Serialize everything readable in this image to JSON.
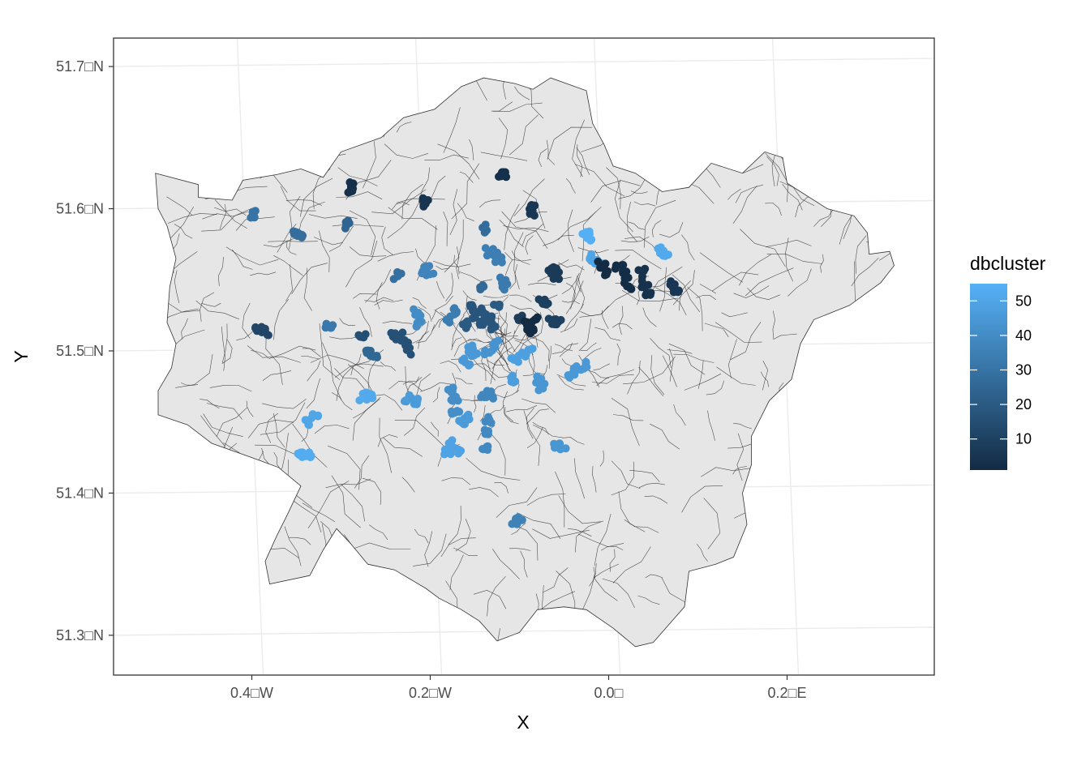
{
  "chart_data": {
    "type": "map",
    "xlabel": "X",
    "ylabel": "Y",
    "x_ticks": [
      {
        "value": -0.4,
        "label": "0.4□W"
      },
      {
        "value": -0.2,
        "label": "0.2□W"
      },
      {
        "value": 0.0,
        "label": "0.0□"
      },
      {
        "value": 0.2,
        "label": "0.2□E"
      }
    ],
    "y_ticks": [
      {
        "value": 51.7,
        "label": "51.7□N"
      },
      {
        "value": 51.6,
        "label": "51.6□N"
      },
      {
        "value": 51.5,
        "label": "51.5□N"
      },
      {
        "value": 51.4,
        "label": "51.4□N"
      },
      {
        "value": 51.3,
        "label": "51.3□N"
      }
    ],
    "xlim": [
      -0.555,
      0.365
    ],
    "ylim": [
      51.272,
      51.72
    ],
    "grid": true,
    "legend": {
      "title": "dbcluster",
      "placement": "right",
      "type": "colorbar",
      "range": [
        1,
        55
      ],
      "ticks": [
        10,
        20,
        30,
        40,
        50
      ],
      "color_low": "#132B43",
      "color_high": "#56B1F7"
    },
    "region_fill": "#e6e6e6",
    "region_stroke": "#333333",
    "outline": [
      [
        -0.508,
        51.625
      ],
      [
        -0.46,
        51.617
      ],
      [
        -0.46,
        51.608
      ],
      [
        -0.422,
        51.606
      ],
      [
        -0.41,
        51.62
      ],
      [
        -0.372,
        51.624
      ],
      [
        -0.345,
        51.628
      ],
      [
        -0.32,
        51.622
      ],
      [
        -0.3,
        51.64
      ],
      [
        -0.255,
        51.65
      ],
      [
        -0.23,
        51.664
      ],
      [
        -0.195,
        51.67
      ],
      [
        -0.165,
        51.686
      ],
      [
        -0.14,
        51.692
      ],
      [
        -0.105,
        51.688
      ],
      [
        -0.085,
        51.684
      ],
      [
        -0.065,
        51.692
      ],
      [
        -0.025,
        51.683
      ],
      [
        -0.018,
        51.66
      ],
      [
        -0.005,
        51.645
      ],
      [
        0.005,
        51.63
      ],
      [
        0.03,
        51.625
      ],
      [
        0.06,
        51.612
      ],
      [
        0.09,
        51.615
      ],
      [
        0.115,
        51.632
      ],
      [
        0.15,
        51.625
      ],
      [
        0.175,
        51.64
      ],
      [
        0.195,
        51.636
      ],
      [
        0.2,
        51.618
      ],
      [
        0.245,
        51.6
      ],
      [
        0.275,
        51.595
      ],
      [
        0.29,
        51.583
      ],
      [
        0.292,
        51.568
      ],
      [
        0.315,
        51.57
      ],
      [
        0.32,
        51.56
      ],
      [
        0.305,
        51.548
      ],
      [
        0.27,
        51.532
      ],
      [
        0.23,
        51.522
      ],
      [
        0.215,
        51.505
      ],
      [
        0.205,
        51.48
      ],
      [
        0.18,
        51.465
      ],
      [
        0.16,
        51.44
      ],
      [
        0.16,
        51.42
      ],
      [
        0.15,
        51.4
      ],
      [
        0.155,
        51.378
      ],
      [
        0.14,
        51.355
      ],
      [
        0.12,
        51.35
      ],
      [
        0.09,
        51.345
      ],
      [
        0.085,
        51.32
      ],
      [
        0.05,
        51.295
      ],
      [
        0.03,
        51.292
      ],
      [
        0.005,
        51.305
      ],
      [
        -0.025,
        51.318
      ],
      [
        -0.05,
        51.32
      ],
      [
        -0.08,
        51.318
      ],
      [
        -0.1,
        51.302
      ],
      [
        -0.125,
        51.296
      ],
      [
        -0.145,
        51.31
      ],
      [
        -0.165,
        51.318
      ],
      [
        -0.19,
        51.326
      ],
      [
        -0.205,
        51.333
      ],
      [
        -0.24,
        51.346
      ],
      [
        -0.27,
        51.35
      ],
      [
        -0.29,
        51.365
      ],
      [
        -0.305,
        51.375
      ],
      [
        -0.32,
        51.36
      ],
      [
        -0.335,
        51.342
      ],
      [
        -0.38,
        51.336
      ],
      [
        -0.385,
        51.352
      ],
      [
        -0.372,
        51.37
      ],
      [
        -0.36,
        51.385
      ],
      [
        -0.345,
        51.405
      ],
      [
        -0.37,
        51.418
      ],
      [
        -0.4,
        51.425
      ],
      [
        -0.445,
        51.435
      ],
      [
        -0.472,
        51.448
      ],
      [
        -0.505,
        51.455
      ],
      [
        -0.505,
        51.472
      ],
      [
        -0.49,
        51.488
      ],
      [
        -0.485,
        51.505
      ],
      [
        -0.495,
        51.52
      ],
      [
        -0.492,
        51.545
      ],
      [
        -0.485,
        51.565
      ],
      [
        -0.495,
        51.588
      ],
      [
        -0.505,
        51.6
      ],
      [
        -0.508,
        51.625
      ]
    ],
    "points": [
      {
        "x": -0.29,
        "y": 51.616,
        "c": 3
      },
      {
        "x": -0.288,
        "y": 51.613,
        "c": 3
      },
      {
        "x": -0.117,
        "y": 51.626,
        "c": 3
      },
      {
        "x": -0.119,
        "y": 51.623,
        "c": 3
      },
      {
        "x": -0.205,
        "y": 51.608,
        "c": 5
      },
      {
        "x": -0.208,
        "y": 51.603,
        "c": 5
      },
      {
        "x": -0.084,
        "y": 51.6,
        "c": 6
      },
      {
        "x": -0.087,
        "y": 51.598,
        "c": 6
      },
      {
        "x": -0.397,
        "y": 51.596,
        "c": 30
      },
      {
        "x": -0.35,
        "y": 51.585,
        "c": 28
      },
      {
        "x": -0.347,
        "y": 51.582,
        "c": 28
      },
      {
        "x": -0.292,
        "y": 51.589,
        "c": 24
      },
      {
        "x": -0.139,
        "y": 51.586,
        "c": 27
      },
      {
        "x": -0.128,
        "y": 51.567,
        "c": 35
      },
      {
        "x": -0.123,
        "y": 51.564,
        "c": 35
      },
      {
        "x": -0.134,
        "y": 51.57,
        "c": 35
      },
      {
        "x": -0.205,
        "y": 51.557,
        "c": 37
      },
      {
        "x": -0.2,
        "y": 51.555,
        "c": 37
      },
      {
        "x": -0.237,
        "y": 51.553,
        "c": 29
      },
      {
        "x": -0.063,
        "y": 51.556,
        "c": 7
      },
      {
        "x": -0.06,
        "y": 51.553,
        "c": 7
      },
      {
        "x": -0.076,
        "y": 51.535,
        "c": 9
      },
      {
        "x": -0.069,
        "y": 51.534,
        "c": 9
      },
      {
        "x": -0.025,
        "y": 51.582,
        "c": 54
      },
      {
        "x": -0.022,
        "y": 51.58,
        "c": 54
      },
      {
        "x": -0.019,
        "y": 51.566,
        "c": 50
      },
      {
        "x": -0.012,
        "y": 51.563,
        "c": 50
      },
      {
        "x": -0.008,
        "y": 51.56,
        "c": 1
      },
      {
        "x": -0.004,
        "y": 51.556,
        "c": 1
      },
      {
        "x": 0.012,
        "y": 51.558,
        "c": 2
      },
      {
        "x": 0.018,
        "y": 51.553,
        "c": 2
      },
      {
        "x": 0.022,
        "y": 51.545,
        "c": 2
      },
      {
        "x": 0.038,
        "y": 51.555,
        "c": 4
      },
      {
        "x": 0.041,
        "y": 51.547,
        "c": 4
      },
      {
        "x": 0.043,
        "y": 51.54,
        "c": 4
      },
      {
        "x": 0.058,
        "y": 51.57,
        "c": 52
      },
      {
        "x": 0.063,
        "y": 51.568,
        "c": 52
      },
      {
        "x": 0.072,
        "y": 51.547,
        "c": 6
      },
      {
        "x": 0.077,
        "y": 51.544,
        "c": 6
      },
      {
        "x": -0.155,
        "y": 51.53,
        "c": 18
      },
      {
        "x": -0.15,
        "y": 51.525,
        "c": 18
      },
      {
        "x": -0.145,
        "y": 51.52,
        "c": 18
      },
      {
        "x": -0.14,
        "y": 51.528,
        "c": 18
      },
      {
        "x": -0.135,
        "y": 51.522,
        "c": 18
      },
      {
        "x": -0.13,
        "y": 51.517,
        "c": 18
      },
      {
        "x": -0.125,
        "y": 51.53,
        "c": 20
      },
      {
        "x": -0.16,
        "y": 51.518,
        "c": 20
      },
      {
        "x": -0.17,
        "y": 51.528,
        "c": 34
      },
      {
        "x": -0.178,
        "y": 51.522,
        "c": 34
      },
      {
        "x": -0.12,
        "y": 51.55,
        "c": 33
      },
      {
        "x": -0.115,
        "y": 51.545,
        "c": 33
      },
      {
        "x": -0.142,
        "y": 51.545,
        "c": 26
      },
      {
        "x": -0.1,
        "y": 51.522,
        "c": 8
      },
      {
        "x": -0.092,
        "y": 51.52,
        "c": 1
      },
      {
        "x": -0.088,
        "y": 51.515,
        "c": 1
      },
      {
        "x": -0.082,
        "y": 51.523,
        "c": 1
      },
      {
        "x": -0.063,
        "y": 51.52,
        "c": 10
      },
      {
        "x": -0.057,
        "y": 51.52,
        "c": 10
      },
      {
        "x": -0.215,
        "y": 51.527,
        "c": 40
      },
      {
        "x": -0.213,
        "y": 51.52,
        "c": 40
      },
      {
        "x": -0.245,
        "y": 51.511,
        "c": 16
      },
      {
        "x": -0.235,
        "y": 51.51,
        "c": 16
      },
      {
        "x": -0.228,
        "y": 51.505,
        "c": 16
      },
      {
        "x": -0.222,
        "y": 51.5,
        "c": 16
      },
      {
        "x": -0.392,
        "y": 51.515,
        "c": 12
      },
      {
        "x": -0.385,
        "y": 51.513,
        "c": 12
      },
      {
        "x": -0.313,
        "y": 51.517,
        "c": 32
      },
      {
        "x": -0.276,
        "y": 51.512,
        "c": 15
      },
      {
        "x": -0.27,
        "y": 51.498,
        "c": 25
      },
      {
        "x": -0.264,
        "y": 51.497,
        "c": 25
      },
      {
        "x": -0.155,
        "y": 51.502,
        "c": 45
      },
      {
        "x": -0.15,
        "y": 51.497,
        "c": 45
      },
      {
        "x": -0.16,
        "y": 51.492,
        "c": 45
      },
      {
        "x": -0.105,
        "y": 51.494,
        "c": 48
      },
      {
        "x": -0.097,
        "y": 51.497,
        "c": 48
      },
      {
        "x": -0.088,
        "y": 51.5,
        "c": 48
      },
      {
        "x": -0.107,
        "y": 51.48,
        "c": 47
      },
      {
        "x": -0.078,
        "y": 51.48,
        "c": 44
      },
      {
        "x": -0.075,
        "y": 51.475,
        "c": 44
      },
      {
        "x": -0.042,
        "y": 51.483,
        "c": 45
      },
      {
        "x": -0.035,
        "y": 51.487,
        "c": 45
      },
      {
        "x": -0.028,
        "y": 51.49,
        "c": 45
      },
      {
        "x": -0.275,
        "y": 51.468,
        "c": 52
      },
      {
        "x": -0.267,
        "y": 51.468,
        "c": 52
      },
      {
        "x": -0.225,
        "y": 51.467,
        "c": 46
      },
      {
        "x": -0.218,
        "y": 51.465,
        "c": 46
      },
      {
        "x": -0.176,
        "y": 51.473,
        "c": 41
      },
      {
        "x": -0.173,
        "y": 51.465,
        "c": 41
      },
      {
        "x": -0.172,
        "y": 51.458,
        "c": 41
      },
      {
        "x": -0.14,
        "y": 51.47,
        "c": 38
      },
      {
        "x": -0.133,
        "y": 51.469,
        "c": 38
      },
      {
        "x": -0.338,
        "y": 51.45,
        "c": 50
      },
      {
        "x": -0.33,
        "y": 51.453,
        "c": 50
      },
      {
        "x": -0.345,
        "y": 51.428,
        "c": 53
      },
      {
        "x": -0.337,
        "y": 51.428,
        "c": 53
      },
      {
        "x": -0.165,
        "y": 51.45,
        "c": 46
      },
      {
        "x": -0.158,
        "y": 51.453,
        "c": 46
      },
      {
        "x": -0.176,
        "y": 51.435,
        "c": 49
      },
      {
        "x": -0.17,
        "y": 51.43,
        "c": 49
      },
      {
        "x": -0.18,
        "y": 51.43,
        "c": 49
      },
      {
        "x": -0.135,
        "y": 51.452,
        "c": 39
      },
      {
        "x": -0.138,
        "y": 51.442,
        "c": 39
      },
      {
        "x": -0.14,
        "y": 51.432,
        "c": 39
      },
      {
        "x": -0.058,
        "y": 51.433,
        "c": 44
      },
      {
        "x": -0.052,
        "y": 51.433,
        "c": 44
      },
      {
        "x": -0.105,
        "y": 51.381,
        "c": 36
      },
      {
        "x": -0.1,
        "y": 51.381,
        "c": 36
      },
      {
        "x": -0.135,
        "y": 51.5,
        "c": 43
      },
      {
        "x": -0.128,
        "y": 51.505,
        "c": 43
      }
    ]
  }
}
